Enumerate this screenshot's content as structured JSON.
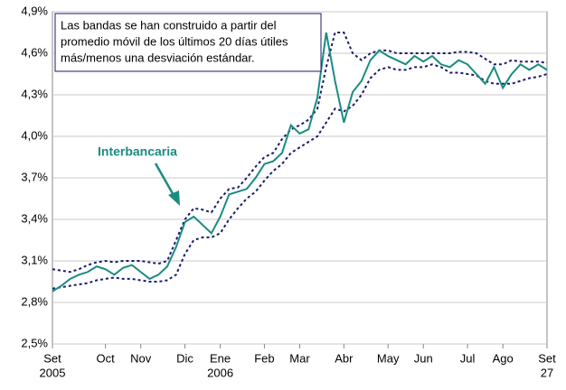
{
  "chart_data": {
    "type": "line",
    "annotation_lines": [
      "Las bandas se han construido a partir del",
      "promedio móvil de los últimos 20 días útiles",
      "más/menos una desviación estándar."
    ],
    "categories": [
      "Set",
      null,
      null,
      null,
      null,
      null,
      "Oct",
      null,
      null,
      null,
      "Nov",
      null,
      null,
      null,
      null,
      "Dic",
      null,
      null,
      null,
      "Ene",
      null,
      null,
      null,
      null,
      "Feb",
      null,
      null,
      null,
      "Mar",
      null,
      null,
      null,
      null,
      "Abr",
      null,
      null,
      null,
      null,
      "May",
      null,
      null,
      null,
      "Jun",
      null,
      null,
      null,
      null,
      "Jul",
      null,
      null,
      null,
      "Ago",
      null,
      null,
      null,
      null,
      "Set"
    ],
    "category_sublabels": [
      "2005",
      null,
      null,
      null,
      null,
      null,
      null,
      null,
      null,
      null,
      null,
      null,
      null,
      null,
      null,
      null,
      null,
      null,
      null,
      "2006",
      null,
      null,
      null,
      null,
      null,
      null,
      null,
      null,
      null,
      null,
      null,
      null,
      null,
      null,
      null,
      null,
      null,
      null,
      null,
      null,
      null,
      null,
      null,
      null,
      null,
      null,
      null,
      null,
      null,
      null,
      null,
      null,
      null,
      null,
      null,
      null,
      "27"
    ],
    "series": [
      {
        "name": "Interbancaria",
        "color": "#1a8c80",
        "dashed": false,
        "values": [
          2.88,
          2.92,
          2.97,
          3.0,
          3.02,
          3.06,
          3.04,
          3.0,
          3.05,
          3.07,
          3.02,
          2.97,
          3.0,
          3.06,
          3.2,
          3.38,
          3.42,
          3.36,
          3.3,
          3.42,
          3.58,
          3.6,
          3.62,
          3.7,
          3.8,
          3.82,
          3.88,
          4.08,
          4.02,
          4.05,
          4.28,
          4.75,
          4.4,
          4.1,
          4.32,
          4.4,
          4.55,
          4.62,
          4.58,
          4.55,
          4.52,
          4.58,
          4.54,
          4.58,
          4.52,
          4.5,
          4.55,
          4.52,
          4.45,
          4.38,
          4.5,
          4.35,
          4.45,
          4.52,
          4.48,
          4.52,
          4.48
        ]
      },
      {
        "color": "#1a1a6e",
        "dashed": true,
        "values": [
          3.04,
          3.03,
          3.02,
          3.04,
          3.07,
          3.09,
          3.1,
          3.09,
          3.1,
          3.1,
          3.1,
          3.09,
          3.08,
          3.1,
          3.25,
          3.4,
          3.48,
          3.47,
          3.45,
          3.55,
          3.62,
          3.63,
          3.7,
          3.78,
          3.85,
          3.88,
          3.98,
          4.05,
          4.08,
          4.12,
          4.2,
          4.5,
          4.75,
          4.75,
          4.6,
          4.55,
          4.6,
          4.62,
          4.62,
          4.6,
          4.6,
          4.6,
          4.6,
          4.6,
          4.6,
          4.6,
          4.61,
          4.61,
          4.6,
          4.56,
          4.52,
          4.52,
          4.55,
          4.54,
          4.54,
          4.54,
          4.53
        ]
      },
      {
        "color": "#1a1a6e",
        "dashed": true,
        "values": [
          2.9,
          2.91,
          2.92,
          2.93,
          2.94,
          2.96,
          2.97,
          2.98,
          2.97,
          2.97,
          2.96,
          2.95,
          2.95,
          2.96,
          3.0,
          3.15,
          3.25,
          3.27,
          3.27,
          3.3,
          3.4,
          3.48,
          3.55,
          3.6,
          3.68,
          3.75,
          3.8,
          3.88,
          3.92,
          3.96,
          4.0,
          4.1,
          4.2,
          4.18,
          4.22,
          4.3,
          4.42,
          4.48,
          4.5,
          4.48,
          4.48,
          4.5,
          4.5,
          4.52,
          4.5,
          4.46,
          4.46,
          4.45,
          4.44,
          4.4,
          4.38,
          4.38,
          4.38,
          4.4,
          4.42,
          4.43,
          4.45
        ]
      }
    ],
    "ylim": [
      2.5,
      4.9
    ],
    "yticks": [
      {
        "value": 2.5,
        "label": "2,5%"
      },
      {
        "value": 2.8,
        "label": "2,8%"
      },
      {
        "value": 3.1,
        "label": "3,1%"
      },
      {
        "value": 3.4,
        "label": "3,4%"
      },
      {
        "value": 3.7,
        "label": "3,7%"
      },
      {
        "value": 4.0,
        "label": "4,0%"
      },
      {
        "value": 4.3,
        "label": "4,3%"
      },
      {
        "value": 4.6,
        "label": "4,6%"
      },
      {
        "value": 4.9,
        "label": "4,9%"
      }
    ],
    "grid": true
  }
}
